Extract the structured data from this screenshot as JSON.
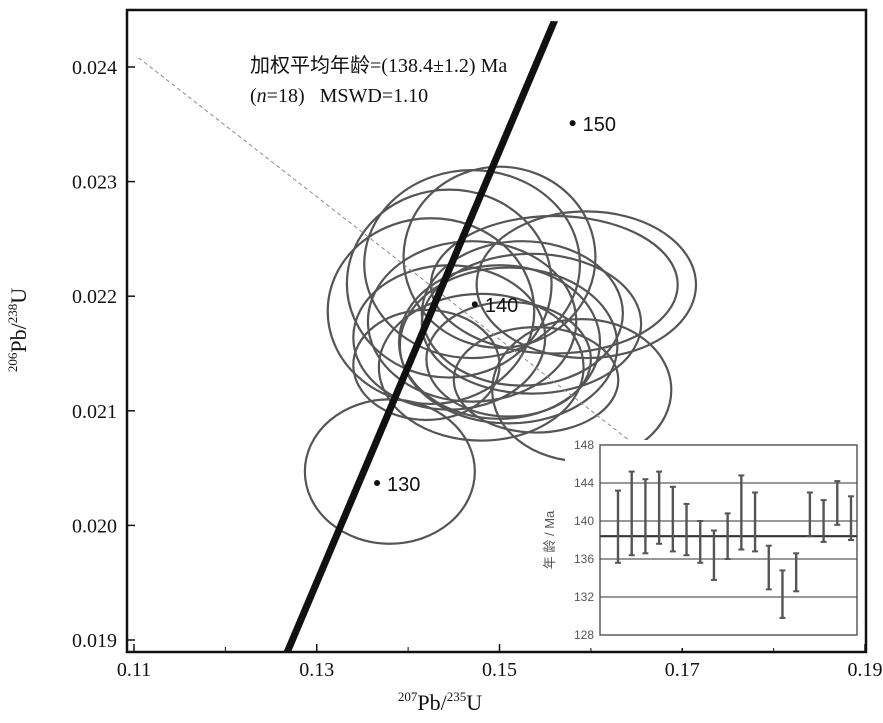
{
  "chart_data": {
    "type": "scatter",
    "main": {
      "xlabel": {
        "mass1": "207",
        "el1": "Pb",
        "mass2": "235",
        "el2": "U"
      },
      "ylabel": {
        "mass1": "206",
        "el1": "Pb",
        "mass2": "238",
        "el2": "U"
      },
      "xlim": [
        0.11,
        0.19
      ],
      "ylim": [
        0.019,
        0.0244
      ],
      "xticks": [
        "0.11",
        "0.13",
        "0.15",
        "0.17",
        "0.19"
      ],
      "yticks": [
        "0.019",
        "0.020",
        "0.021",
        "0.022",
        "0.023",
        "0.024"
      ],
      "annotation_line1": "加权平均年龄=(138.4±1.2) Ma",
      "annotation_line2_n": "n",
      "annotation_line2_rest": "=18)   MSWD=1.10",
      "annotation_line2_open": "(",
      "concordia_ages": [
        {
          "label": "130",
          "x": 0.1366,
          "y": 0.02037
        },
        {
          "label": "140",
          "x": 0.1473,
          "y": 0.02193
        },
        {
          "label": "150",
          "x": 0.158,
          "y": 0.02351
        }
      ],
      "concordia_line": {
        "x1": 0.1268,
        "y1": 0.0189,
        "x2": 0.156,
        "y2": 0.0244
      },
      "reference_line": {
        "x1": 0.1105,
        "y1": 0.02408,
        "x2": 0.1898,
        "y2": 0.01915
      },
      "ellipses": [
        {
          "cx": 0.138,
          "cy": 0.02047,
          "rx": 0.0093,
          "ry": 0.00063
        },
        {
          "cx": 0.1425,
          "cy": 0.02187,
          "rx": 0.0113,
          "ry": 0.00081
        },
        {
          "cx": 0.1445,
          "cy": 0.02211,
          "rx": 0.0112,
          "ry": 0.00082
        },
        {
          "cx": 0.147,
          "cy": 0.02228,
          "rx": 0.0118,
          "ry": 0.00082
        },
        {
          "cx": 0.15,
          "cy": 0.02234,
          "rx": 0.0105,
          "ry": 0.00079
        },
        {
          "cx": 0.1445,
          "cy": 0.02164,
          "rx": 0.0105,
          "ry": 0.00063
        },
        {
          "cx": 0.148,
          "cy": 0.02138,
          "rx": 0.0112,
          "ry": 0.00064
        },
        {
          "cx": 0.151,
          "cy": 0.02157,
          "rx": 0.0119,
          "ry": 0.00068
        },
        {
          "cx": 0.1525,
          "cy": 0.02185,
          "rx": 0.011,
          "ry": 0.00063
        },
        {
          "cx": 0.147,
          "cy": 0.02178,
          "rx": 0.0114,
          "ry": 0.0007
        },
        {
          "cx": 0.156,
          "cy": 0.0221,
          "rx": 0.0135,
          "ry": 0.0006
        },
        {
          "cx": 0.1595,
          "cy": 0.0221,
          "rx": 0.012,
          "ry": 0.00064
        },
        {
          "cx": 0.15,
          "cy": 0.0216,
          "rx": 0.011,
          "ry": 0.00067
        },
        {
          "cx": 0.151,
          "cy": 0.02145,
          "rx": 0.009,
          "ry": 0.0005
        },
        {
          "cx": 0.154,
          "cy": 0.02127,
          "rx": 0.009,
          "ry": 0.00046
        },
        {
          "cx": 0.159,
          "cy": 0.02118,
          "rx": 0.0098,
          "ry": 0.00062
        },
        {
          "cx": 0.142,
          "cy": 0.0214,
          "rx": 0.008,
          "ry": 0.00048
        },
        {
          "cx": 0.1535,
          "cy": 0.02176,
          "rx": 0.012,
          "ry": 0.00061
        }
      ]
    },
    "inset": {
      "type": "bar",
      "ylabel": "年 龄 / Ma",
      "ylim": [
        128,
        148
      ],
      "yticks": [
        "128",
        "132",
        "136",
        "140",
        "144",
        "148"
      ],
      "mean": 138.4,
      "hlines": [
        144,
        140,
        136,
        132
      ],
      "bars": [
        {
          "low": 135.6,
          "high": 143.2
        },
        {
          "low": 136.4,
          "high": 145.2
        },
        {
          "low": 136.6,
          "high": 144.4
        },
        {
          "low": 137.6,
          "high": 145.2
        },
        {
          "low": 136.8,
          "high": 143.6
        },
        {
          "low": 136.4,
          "high": 141.8
        },
        {
          "low": 135.6,
          "high": 140.0
        },
        {
          "low": 133.8,
          "high": 139.0
        },
        {
          "low": 136.0,
          "high": 140.8
        },
        {
          "low": 137.0,
          "high": 144.8
        },
        {
          "low": 136.8,
          "high": 143.0
        },
        {
          "low": 132.8,
          "high": 137.4
        },
        {
          "low": 129.8,
          "high": 134.8
        },
        {
          "low": 132.6,
          "high": 136.6
        },
        {
          "low": 138.4,
          "high": 143.0
        },
        {
          "low": 137.8,
          "high": 142.2
        },
        {
          "low": 139.6,
          "high": 144.2
        },
        {
          "low": 138.0,
          "high": 142.6
        }
      ]
    },
    "colors": {
      "ellipse": "#555555",
      "concordia": "#111111",
      "reference": "#8a8a8a",
      "inset_bar": "#555555",
      "inset_line": "#333333"
    }
  }
}
